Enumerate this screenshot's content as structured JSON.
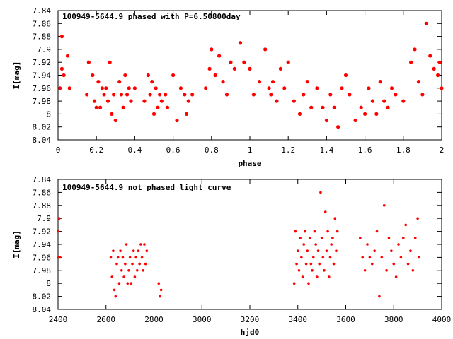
{
  "chart_data": [
    {
      "type": "scatter",
      "title": "100949-5644.9 phased with P=6.50800day",
      "xlabel": "phase",
      "ylabel": "I[mag]",
      "xlim": [
        0,
        2
      ],
      "ylim": [
        7.84,
        8.04
      ],
      "y_inverted": true,
      "xticks": [
        0,
        0.2,
        0.4,
        0.6,
        0.8,
        1,
        1.2,
        1.4,
        1.6,
        1.8,
        2
      ],
      "yticks": [
        7.84,
        7.86,
        7.88,
        7.9,
        7.92,
        7.94,
        7.96,
        7.98,
        8,
        8.02,
        8.04
      ],
      "xtick_labels": [
        "0",
        "0.2",
        "0.4",
        "0.6",
        "0.8",
        "1",
        "1.2",
        "1.4",
        "1.6",
        "1.8",
        "2"
      ],
      "ytick_labels": [
        "7.84",
        "7.86",
        "7.88",
        "7.9",
        "7.92",
        "7.94",
        "7.96",
        "7.98",
        "8",
        "8.02",
        "8.04"
      ],
      "marker_color": "#ff0000",
      "series": [
        {
          "x": [
            0.01,
            0.02,
            0.02,
            0.03,
            0.05,
            0.06,
            0.15,
            0.16,
            0.18,
            0.19,
            0.2,
            0.21,
            0.22,
            0.23,
            0.24,
            0.25,
            0.26,
            0.27,
            0.28,
            0.29,
            0.3,
            0.32,
            0.33,
            0.34,
            0.35,
            0.36,
            0.37,
            0.38,
            0.4,
            0.45,
            0.47,
            0.48,
            0.49,
            0.5,
            0.51,
            0.52,
            0.53,
            0.54,
            0.56,
            0.57,
            0.6,
            0.62,
            0.64,
            0.66,
            0.67,
            0.68,
            0.7,
            0.77,
            0.79,
            0.8,
            0.82,
            0.84,
            0.86,
            0.88,
            0.9,
            0.92,
            0.95,
            0.97,
            1.0,
            1.02,
            1.05,
            1.08,
            1.1,
            1.11,
            1.12,
            1.14,
            1.16,
            1.18,
            1.2,
            1.23,
            1.26,
            1.28,
            1.3,
            1.32,
            1.35,
            1.38,
            1.4,
            1.42,
            1.44,
            1.46,
            1.48,
            1.5,
            1.52,
            1.55,
            1.58,
            1.6,
            1.62,
            1.64,
            1.66,
            1.68,
            1.7,
            1.72,
            1.74,
            1.76,
            1.8,
            1.84,
            1.86,
            1.88,
            1.9,
            1.92,
            1.94,
            1.96,
            1.98,
            2.0,
            1.99
          ],
          "y": [
            7.96,
            7.93,
            7.88,
            7.94,
            7.91,
            7.96,
            7.97,
            7.92,
            7.94,
            7.98,
            7.99,
            7.95,
            7.99,
            7.96,
            7.97,
            7.96,
            7.98,
            7.92,
            8.0,
            7.97,
            8.01,
            7.95,
            7.97,
            7.99,
            7.94,
            7.97,
            7.96,
            7.98,
            7.96,
            7.98,
            7.94,
            7.97,
            7.95,
            8.0,
            7.96,
            7.99,
            7.97,
            7.98,
            7.97,
            7.99,
            7.94,
            8.01,
            7.96,
            7.97,
            8.0,
            7.98,
            7.97,
            7.96,
            7.93,
            7.9,
            7.94,
            7.91,
            7.95,
            7.97,
            7.92,
            7.93,
            7.89,
            7.92,
            7.93,
            7.97,
            7.95,
            7.9,
            7.96,
            7.97,
            7.95,
            7.98,
            7.93,
            7.96,
            7.92,
            7.98,
            8.0,
            7.97,
            7.95,
            7.99,
            7.96,
            7.99,
            8.01,
            7.97,
            7.99,
            8.02,
            7.96,
            7.94,
            7.97,
            8.01,
            7.99,
            8.0,
            7.96,
            7.98,
            8.0,
            7.95,
            7.98,
            7.99,
            7.96,
            7.97,
            7.98,
            7.92,
            7.9,
            7.95,
            7.97,
            7.86,
            7.91,
            7.93,
            7.94,
            7.96,
            7.92
          ]
        }
      ]
    },
    {
      "type": "scatter",
      "title": "100949-5644.9 not phased light curve",
      "xlabel": "hjd0",
      "ylabel": "I[mag]",
      "xlim": [
        2400,
        4000
      ],
      "ylim": [
        7.84,
        8.04
      ],
      "y_inverted": true,
      "xticks": [
        2400,
        2600,
        2800,
        3000,
        3200,
        3400,
        3600,
        3800,
        4000
      ],
      "yticks": [
        7.84,
        7.86,
        7.88,
        7.9,
        7.92,
        7.94,
        7.96,
        7.98,
        8,
        8.02,
        8.04
      ],
      "xtick_labels": [
        "2400",
        "2600",
        "2800",
        "3000",
        "3200",
        "3400",
        "3600",
        "3800",
        "4000"
      ],
      "ytick_labels": [
        "7.84",
        "7.86",
        "7.88",
        "7.9",
        "7.92",
        "7.94",
        "7.96",
        "7.98",
        "8",
        "8.02",
        "8.04"
      ],
      "marker_color": "#ff0000",
      "series": [
        {
          "x": [
            2400,
            2402,
            2405,
            2408,
            2620,
            2625,
            2630,
            2635,
            2640,
            2645,
            2650,
            2655,
            2660,
            2665,
            2670,
            2675,
            2680,
            2685,
            2690,
            2695,
            2700,
            2705,
            2710,
            2715,
            2720,
            2725,
            2730,
            2735,
            2740,
            2745,
            2750,
            2755,
            2760,
            2765,
            2770,
            2820,
            2825,
            2830,
            3385,
            3390,
            3395,
            3400,
            3405,
            3410,
            3415,
            3420,
            3425,
            3430,
            3435,
            3440,
            3445,
            3450,
            3455,
            3460,
            3465,
            3470,
            3475,
            3480,
            3485,
            3490,
            3495,
            3500,
            3505,
            3510,
            3515,
            3520,
            3525,
            3530,
            3535,
            3540,
            3545,
            3550,
            3555,
            3560,
            3565,
            3660,
            3670,
            3680,
            3690,
            3700,
            3710,
            3720,
            3730,
            3740,
            3750,
            3760,
            3770,
            3780,
            3790,
            3800,
            3810,
            3820,
            3830,
            3840,
            3850,
            3860,
            3870,
            3880,
            3890,
            3900,
            3905
          ],
          "y": [
            7.92,
            7.96,
            7.9,
            7.96,
            7.96,
            7.99,
            7.95,
            8.01,
            8.02,
            7.97,
            7.96,
            8.0,
            7.95,
            7.98,
            7.96,
            7.99,
            7.97,
            7.94,
            8.0,
            7.98,
            7.96,
            8.0,
            7.97,
            7.95,
            7.99,
            7.96,
            7.98,
            7.95,
            7.97,
            7.94,
            7.96,
            7.98,
            7.94,
            7.97,
            7.95,
            8.0,
            8.02,
            8.01,
            8.0,
            7.92,
            7.97,
            7.95,
            7.98,
            7.93,
            7.96,
            7.99,
            7.94,
            7.92,
            7.97,
            7.95,
            8.0,
            7.93,
            7.97,
            7.98,
            7.96,
            7.92,
            7.94,
            7.99,
            7.95,
            7.97,
            7.86,
            7.93,
            7.96,
            7.98,
            7.89,
            7.95,
            7.92,
            7.99,
            7.96,
            7.94,
            7.93,
            7.97,
            7.9,
            7.95,
            7.92,
            7.93,
            7.96,
            7.98,
            7.94,
            7.96,
            7.97,
            7.95,
            7.92,
            8.02,
            7.96,
            7.88,
            7.98,
            7.93,
            7.95,
            7.97,
            7.99,
            7.94,
            7.96,
            7.93,
            7.91,
            7.97,
            7.95,
            7.98,
            7.93,
            7.9,
            7.96
          ]
        }
      ]
    }
  ]
}
